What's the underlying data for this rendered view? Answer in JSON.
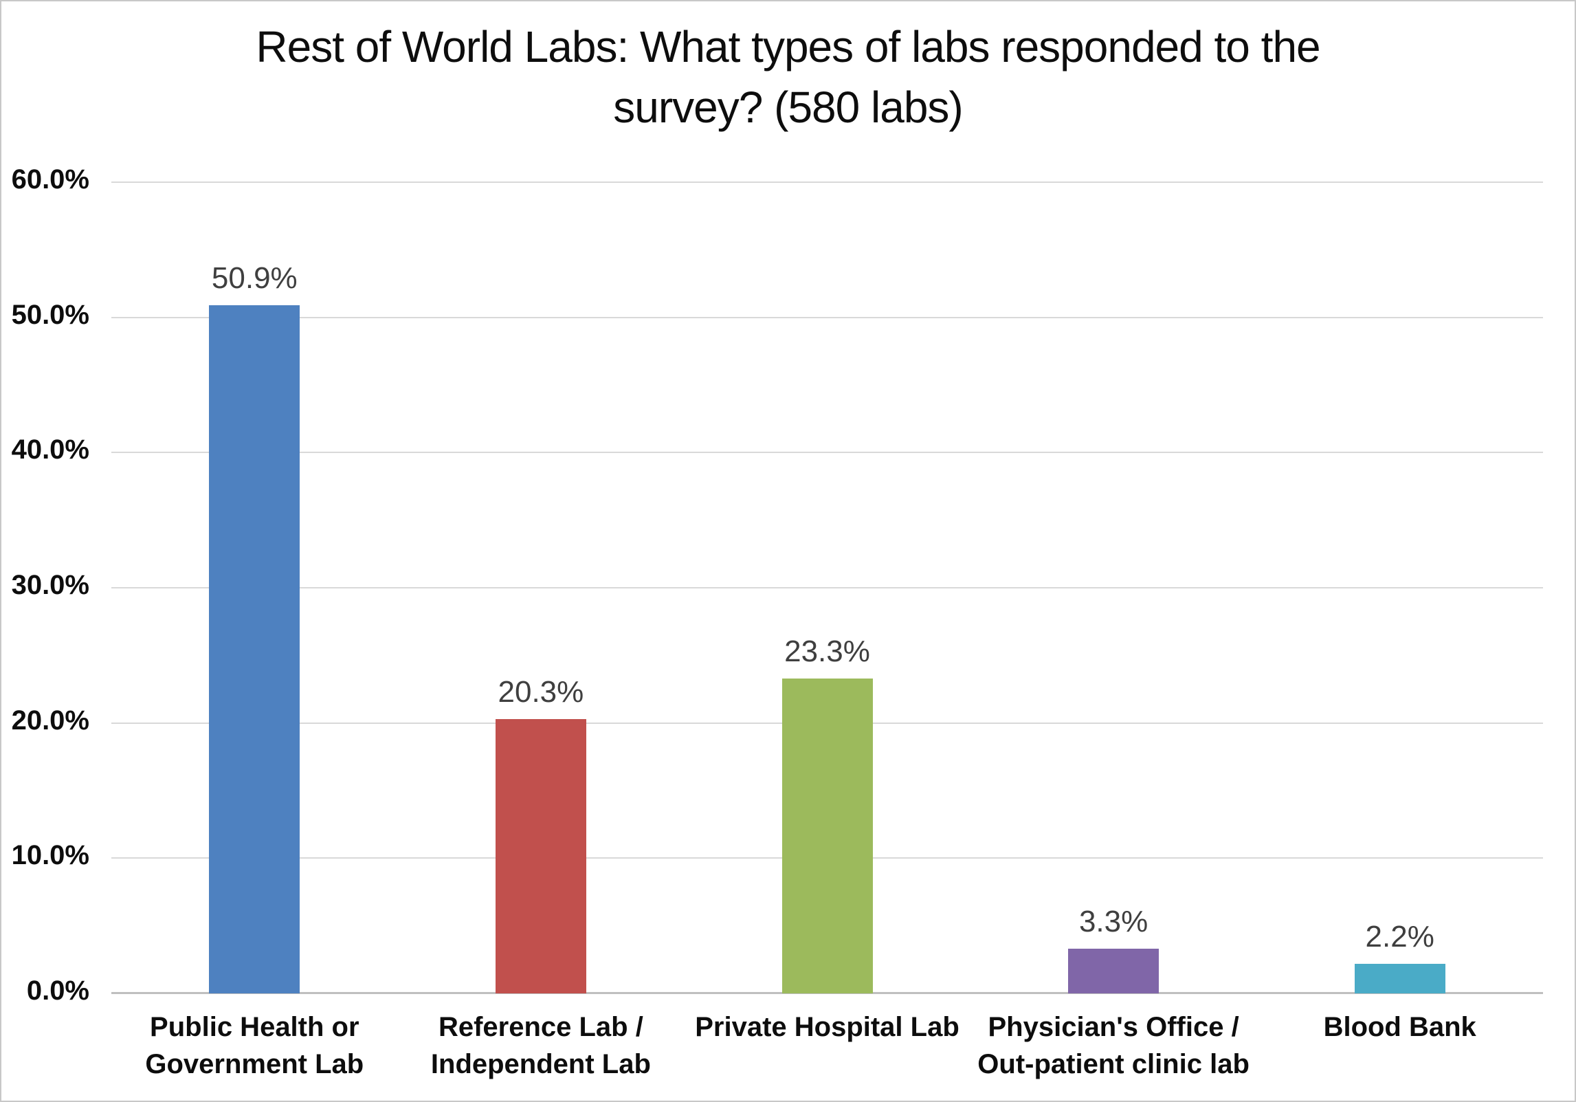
{
  "chart_data": {
    "type": "bar",
    "title": "Rest of World Labs: What types of labs responded to the survey? (580 labs)",
    "title_lines": [
      "Rest of World Labs: What types of labs responded to the",
      "survey? (580 labs)"
    ],
    "categories": [
      "Public Health or Government Lab",
      "Reference Lab / Independent Lab",
      "Private Hospital Lab",
      "Physician's Office / Out-patient clinic lab",
      "Blood Bank"
    ],
    "category_lines": [
      [
        "Public Health or",
        "Government Lab"
      ],
      [
        "Reference Lab /",
        "Independent Lab"
      ],
      [
        "Private Hospital Lab"
      ],
      [
        "Physician's Office /",
        "Out-patient clinic lab"
      ],
      [
        "Blood Bank"
      ]
    ],
    "values": [
      50.9,
      20.3,
      23.3,
      3.3,
      2.2
    ],
    "value_labels": [
      "50.9%",
      "20.3%",
      "23.3%",
      "3.3%",
      "2.2%"
    ],
    "bar_colors": [
      "#4e81c0",
      "#c1504d",
      "#9cba5c",
      "#8066a8",
      "#4aabc7"
    ],
    "xlabel": "",
    "ylabel": "",
    "y_axis": {
      "min": 0,
      "max": 60,
      "step": 10,
      "tick_labels": [
        "0.0%",
        "10.0%",
        "20.0%",
        "30.0%",
        "40.0%",
        "50.0%",
        "60.0%"
      ]
    },
    "grid": true,
    "legend_position": "none",
    "colors": {
      "title_text": "#0d0d0d",
      "axis_text": "#0d0d0d",
      "data_label_text": "#3f3f3f",
      "gridline": "#d9d9d9",
      "axis_line": "#bfbfbf",
      "frame_border": "#c8c8c8",
      "background": "#ffffff"
    }
  }
}
